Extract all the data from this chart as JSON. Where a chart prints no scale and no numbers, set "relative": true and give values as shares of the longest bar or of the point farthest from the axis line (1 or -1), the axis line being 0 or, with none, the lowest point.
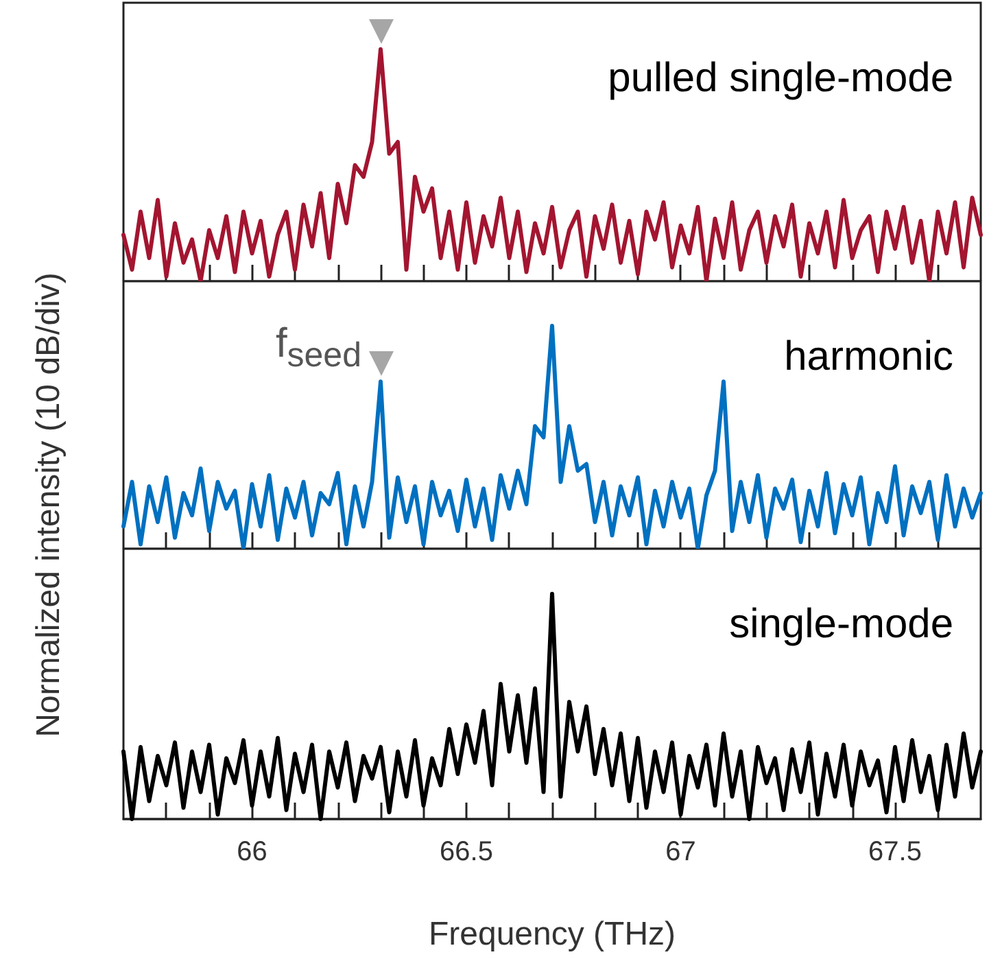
{
  "chart_data": [
    {
      "type": "line",
      "relative": true,
      "tick_labels": false,
      "xlim": [
        65.7,
        67.7
      ],
      "xticks": [
        {
          "value": 65.8,
          "label": null
        },
        {
          "value": 65.9,
          "label": null
        },
        66,
        {
          "value": 66.1,
          "label": null
        },
        {
          "value": 66.2,
          "label": null
        },
        {
          "value": 66.3,
          "label": null
        },
        {
          "value": 66.4,
          "label": null
        },
        66.5,
        {
          "value": 66.6,
          "label": null
        },
        {
          "value": 66.7,
          "label": null
        },
        {
          "value": 66.8,
          "label": null
        },
        {
          "value": 66.9,
          "label": null
        },
        67,
        {
          "value": 67.1,
          "label": null
        },
        {
          "value": 67.2,
          "label": null
        },
        {
          "value": 67.3,
          "label": null
        },
        {
          "value": 67.4,
          "label": null
        },
        67.5,
        {
          "value": 67.6,
          "label": null
        }
      ],
      "x": [
        65.7,
        65.72,
        65.74,
        65.76,
        65.78,
        65.8,
        65.82,
        65.84,
        65.86,
        65.88,
        65.9,
        65.92,
        65.94,
        65.96,
        65.98,
        66,
        66.02,
        66.04,
        66.06,
        66.08,
        66.1,
        66.12,
        66.14,
        66.16,
        66.18,
        66.2,
        66.22,
        66.24,
        66.26,
        66.28,
        66.3,
        66.32,
        66.34,
        66.36,
        66.38,
        66.4,
        66.42,
        66.44,
        66.46,
        66.48,
        66.5,
        66.52,
        66.54,
        66.56,
        66.58,
        66.6,
        66.62,
        66.64,
        66.66,
        66.68,
        66.7,
        66.72,
        66.74,
        66.76,
        66.78,
        66.8,
        66.82,
        66.84,
        66.86,
        66.88,
        66.9,
        66.92,
        66.94,
        66.96,
        66.98,
        67,
        67.02,
        67.04,
        67.06,
        67.08,
        67.1,
        67.12,
        67.14,
        67.16,
        67.18,
        67.2,
        67.22,
        67.24,
        67.26,
        67.28,
        67.3,
        67.32,
        67.34,
        67.36,
        67.38,
        67.4,
        67.42,
        67.44,
        67.46,
        67.48,
        67.5,
        67.52,
        67.54,
        67.56,
        67.58,
        67.6,
        67.62,
        67.64,
        67.66,
        67.68,
        67.7
      ],
      "series": [
        {
          "name": "pulled single-mode",
          "color": "#a31530",
          "values": [
            0.2,
            0.05,
            0.3,
            0.1,
            0.35,
            0.02,
            0.25,
            0.08,
            0.18,
            0,
            0.22,
            0.1,
            0.28,
            0.04,
            0.3,
            0.12,
            0.26,
            0.02,
            0.2,
            0.3,
            0.05,
            0.33,
            0.15,
            0.38,
            0.1,
            0.42,
            0.25,
            0.5,
            0.45,
            0.6,
            1,
            0.55,
            0.6,
            0.05,
            0.45,
            0.3,
            0.4,
            0.1,
            0.3,
            0.05,
            0.34,
            0.08,
            0.28,
            0.15,
            0.36,
            0.1,
            0.3,
            0.04,
            0.25,
            0.12,
            0.32,
            0.06,
            0.22,
            0.3,
            0.02,
            0.28,
            0.14,
            0.33,
            0.08,
            0.26,
            0.03,
            0.3,
            0.18,
            0.34,
            0.06,
            0.24,
            0.12,
            0.32,
            0,
            0.27,
            0.1,
            0.34,
            0.05,
            0.22,
            0.3,
            0.08,
            0.28,
            0.15,
            0.33,
            0.02,
            0.25,
            0.12,
            0.3,
            0.06,
            0.35,
            0.1,
            0.22,
            0.28,
            0.04,
            0.3,
            0.14,
            0.32,
            0.08,
            0.26,
            0,
            0.3,
            0.12,
            0.34,
            0.06,
            0.36,
            0.2
          ]
        }
      ]
    },
    {
      "type": "line",
      "relative": true,
      "tick_labels": false,
      "xlim": [
        65.7,
        67.7
      ],
      "ylabel": "Normalized intensity (10 dB/div)",
      "annotations": [
        {
          "text": "f$_{seed}$",
          "x": 66.3,
          "y": 0.75
        }
      ],
      "xticks": [
        {
          "value": 65.8,
          "label": null
        },
        {
          "value": 65.9,
          "label": null
        },
        66,
        {
          "value": 66.1,
          "label": null
        },
        {
          "value": 66.2,
          "label": null
        },
        {
          "value": 66.3,
          "label": null
        },
        {
          "value": 66.4,
          "label": null
        },
        66.5,
        {
          "value": 66.6,
          "label": null
        },
        {
          "value": 66.7,
          "label": null
        },
        {
          "value": 66.8,
          "label": null
        },
        {
          "value": 66.9,
          "label": null
        },
        67,
        {
          "value": 67.1,
          "label": null
        },
        {
          "value": 67.2,
          "label": null
        },
        {
          "value": 67.3,
          "label": null
        },
        {
          "value": 67.4,
          "label": null
        },
        67.5,
        {
          "value": 67.6,
          "label": null
        }
      ],
      "x": [
        65.7,
        65.72,
        65.74,
        65.76,
        65.78,
        65.8,
        65.82,
        65.84,
        65.86,
        65.88,
        65.9,
        65.92,
        65.94,
        65.96,
        65.98,
        66,
        66.02,
        66.04,
        66.06,
        66.08,
        66.1,
        66.12,
        66.14,
        66.16,
        66.18,
        66.2,
        66.22,
        66.24,
        66.26,
        66.28,
        66.3,
        66.32,
        66.34,
        66.36,
        66.38,
        66.4,
        66.42,
        66.44,
        66.46,
        66.48,
        66.5,
        66.52,
        66.54,
        66.56,
        66.58,
        66.6,
        66.62,
        66.64,
        66.66,
        66.68,
        66.7,
        66.72,
        66.74,
        66.76,
        66.78,
        66.8,
        66.82,
        66.84,
        66.86,
        66.88,
        66.9,
        66.92,
        66.94,
        66.96,
        66.98,
        67,
        67.02,
        67.04,
        67.06,
        67.08,
        67.1,
        67.12,
        67.14,
        67.16,
        67.18,
        67.2,
        67.22,
        67.24,
        67.26,
        67.28,
        67.3,
        67.32,
        67.34,
        67.36,
        67.38,
        67.4,
        67.42,
        67.44,
        67.46,
        67.48,
        67.5,
        67.52,
        67.54,
        67.56,
        67.58,
        67.6,
        67.62,
        67.64,
        67.66,
        67.68,
        67.7
      ],
      "series": [
        {
          "name": "harmonic",
          "color": "#0070c0",
          "values": [
            0.1,
            0.3,
            0.02,
            0.28,
            0.12,
            0.32,
            0.05,
            0.25,
            0.15,
            0.36,
            0.08,
            0.3,
            0.18,
            0.26,
            0,
            0.29,
            0.1,
            0.33,
            0.04,
            0.27,
            0.14,
            0.3,
            0.06,
            0.25,
            0.2,
            0.34,
            0.02,
            0.28,
            0.1,
            0.3,
            0.75,
            0.05,
            0.32,
            0.12,
            0.28,
            0.02,
            0.3,
            0.15,
            0.26,
            0.08,
            0.31,
            0.1,
            0.27,
            0.04,
            0.33,
            0.18,
            0.35,
            0.2,
            0.55,
            0.5,
            1,
            0.3,
            0.55,
            0.35,
            0.38,
            0.12,
            0.3,
            0.06,
            0.28,
            0.15,
            0.32,
            0.02,
            0.26,
            0.1,
            0.3,
            0.14,
            0.27,
            0,
            0.24,
            0.35,
            0.75,
            0.08,
            0.3,
            0.12,
            0.33,
            0.05,
            0.27,
            0.18,
            0.31,
            0.03,
            0.26,
            0.1,
            0.34,
            0.07,
            0.29,
            0.15,
            0.32,
            0.02,
            0.25,
            0.12,
            0.37,
            0.06,
            0.28,
            0.16,
            0.3,
            0.04,
            0.33,
            0.1,
            0.27,
            0.14,
            0.25
          ]
        }
      ]
    },
    {
      "type": "line",
      "relative": true,
      "tick_labels": "x",
      "xlim": [
        65.7,
        67.7
      ],
      "xlabel": "Frequency (THz)",
      "xticks": [
        {
          "value": 65.8,
          "label": null
        },
        {
          "value": 65.9,
          "label": null
        },
        66,
        {
          "value": 66.1,
          "label": null
        },
        {
          "value": 66.2,
          "label": null
        },
        {
          "value": 66.3,
          "label": null
        },
        {
          "value": 66.4,
          "label": null
        },
        66.5,
        {
          "value": 66.6,
          "label": null
        },
        {
          "value": 66.7,
          "label": null
        },
        {
          "value": 66.8,
          "label": null
        },
        {
          "value": 66.9,
          "label": null
        },
        67,
        {
          "value": 67.1,
          "label": null
        },
        {
          "value": 67.2,
          "label": null
        },
        {
          "value": 67.3,
          "label": null
        },
        {
          "value": 67.4,
          "label": null
        },
        67.5,
        {
          "value": 67.6,
          "label": null
        }
      ],
      "x": [
        65.7,
        65.72,
        65.74,
        65.76,
        65.78,
        65.8,
        65.82,
        65.84,
        65.86,
        65.88,
        65.9,
        65.92,
        65.94,
        65.96,
        65.98,
        66,
        66.02,
        66.04,
        66.06,
        66.08,
        66.1,
        66.12,
        66.14,
        66.16,
        66.18,
        66.2,
        66.22,
        66.24,
        66.26,
        66.28,
        66.3,
        66.32,
        66.34,
        66.36,
        66.38,
        66.4,
        66.42,
        66.44,
        66.46,
        66.48,
        66.5,
        66.52,
        66.54,
        66.56,
        66.58,
        66.6,
        66.62,
        66.64,
        66.66,
        66.68,
        66.7,
        66.72,
        66.74,
        66.76,
        66.78,
        66.8,
        66.82,
        66.84,
        66.86,
        66.88,
        66.9,
        66.92,
        66.94,
        66.96,
        66.98,
        67,
        67.02,
        67.04,
        67.06,
        67.08,
        67.1,
        67.12,
        67.14,
        67.16,
        67.18,
        67.2,
        67.22,
        67.24,
        67.26,
        67.28,
        67.3,
        67.32,
        67.34,
        67.36,
        67.38,
        67.4,
        67.42,
        67.44,
        67.46,
        67.48,
        67.5,
        67.52,
        67.54,
        67.56,
        67.58,
        67.6,
        67.62,
        67.64,
        67.66,
        67.68,
        67.7
      ],
      "series": [
        {
          "name": "single-mode",
          "color": "#000000",
          "values": [
            0.3,
            0,
            0.32,
            0.08,
            0.28,
            0.15,
            0.34,
            0.05,
            0.3,
            0.12,
            0.33,
            0.02,
            0.27,
            0.16,
            0.35,
            0.06,
            0.3,
            0.1,
            0.36,
            0.04,
            0.29,
            0.12,
            0.33,
            0,
            0.3,
            0.14,
            0.34,
            0.08,
            0.28,
            0.18,
            0.32,
            0.03,
            0.3,
            0.1,
            0.35,
            0.06,
            0.27,
            0.15,
            0.4,
            0.2,
            0.42,
            0.25,
            0.48,
            0.15,
            0.6,
            0.3,
            0.55,
            0.25,
            0.58,
            0.12,
            1,
            0.1,
            0.52,
            0.3,
            0.5,
            0.2,
            0.4,
            0.15,
            0.38,
            0.08,
            0.36,
            0.05,
            0.3,
            0.12,
            0.34,
            0.02,
            0.28,
            0.14,
            0.33,
            0.06,
            0.38,
            0.1,
            0.3,
            0,
            0.32,
            0.16,
            0.27,
            0.04,
            0.31,
            0.12,
            0.34,
            0.02,
            0.29,
            0.1,
            0.33,
            0.06,
            0.3,
            0.15,
            0.26,
            0.03,
            0.32,
            0.08,
            0.35,
            0.12,
            0.28,
            0.04,
            0.33,
            0.1,
            0.38,
            0.14,
            0.3
          ]
        }
      ]
    }
  ]
}
